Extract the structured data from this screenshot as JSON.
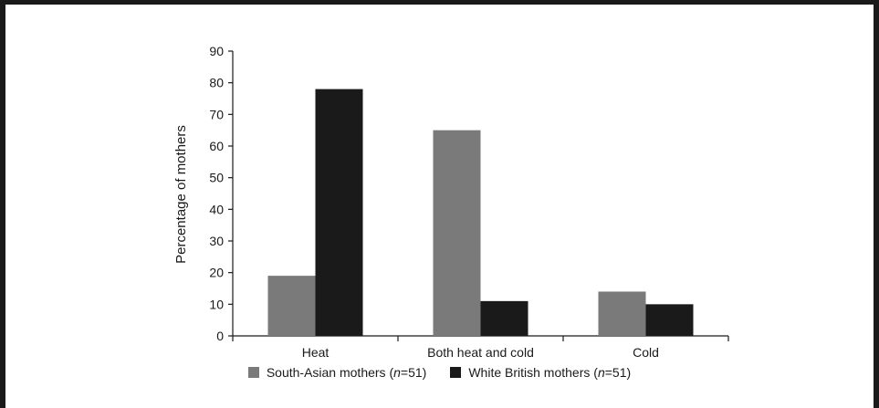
{
  "chart_data": {
    "type": "bar",
    "categories": [
      "Heat",
      "Both heat and cold",
      "Cold"
    ],
    "series": [
      {
        "name": "South-Asian mothers (n=51)",
        "name_parts": [
          "South-Asian mothers (",
          "n",
          "=51)"
        ],
        "values": [
          19,
          65,
          14
        ],
        "color": "#7a7a7a"
      },
      {
        "name": "White British mothers (n=51)",
        "name_parts": [
          "White British mothers (",
          "n",
          "=51)"
        ],
        "values": [
          78,
          11,
          10
        ],
        "color": "#1a1a1a"
      }
    ],
    "ylabel": "Percentage of mothers",
    "ylim": [
      0,
      90
    ],
    "yticks": [
      0,
      10,
      20,
      30,
      40,
      50,
      60,
      70,
      80,
      90
    ],
    "grid": false,
    "legend": "bottom"
  }
}
